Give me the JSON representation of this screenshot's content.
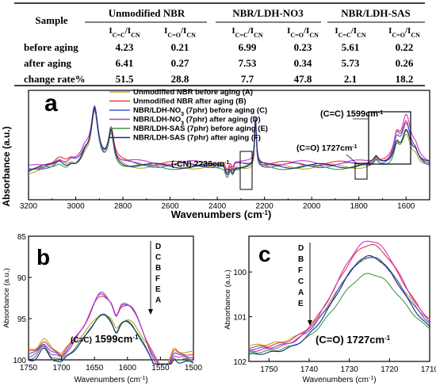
{
  "table": {
    "corner": "Sample",
    "groups": [
      "Unmodified NBR",
      "NBR/LDH-NO3",
      "NBR/LDH-SAS"
    ],
    "col_headers": [
      "IC=C/ICN",
      "IC=O/ICN",
      "IC=C/ICN",
      "IC=O/ICN",
      "IC=C/ICN",
      "IC=O/ICN"
    ],
    "rows": [
      {
        "label": "before aging",
        "values": [
          "4.23",
          "0.21",
          "6.99",
          "0.23",
          "5.61",
          "0.22"
        ]
      },
      {
        "label": "after aging",
        "values": [
          "6.41",
          "0.27",
          "7.53",
          "0.34",
          "5.73",
          "0.26"
        ]
      },
      {
        "label": "change rate%",
        "values": [
          "51.5",
          "28.8",
          "7.7",
          "47.8",
          "2.1",
          "18.2"
        ]
      }
    ]
  },
  "chart_data": [
    {
      "panel": "a",
      "type": "line",
      "xlabel": "Wavenumbers (cm-1)",
      "ylabel": "Absorbance (a.u.)",
      "xlim": [
        3200,
        1500
      ],
      "x_ticks": [
        "3200",
        "3000",
        "2800",
        "2600",
        "2400",
        "2200",
        "2000",
        "1800",
        "1600"
      ],
      "legend_position": "top-center",
      "series": [
        {
          "name": "Unmodified NBR before aging (A)",
          "color": "#b5a82a"
        },
        {
          "name": "Unmodified NBR after aging (B)",
          "color": "#e8383a"
        },
        {
          "name": "NBR/LDH-NO3 (7phr) before aging (C)",
          "color": "#4a56d8"
        },
        {
          "name": "NBR/LDH-NO3 (7phr) after aging (D)",
          "color": "#cc33cc"
        },
        {
          "name": "NBR/LDH-SAS (7phr) before aging (E)",
          "color": "#3f9a4a"
        },
        {
          "name": "NBR/LDH-SAS (7phr) after aging (F)",
          "color": "#1a2a7a"
        }
      ],
      "annotations": [
        "(C=C) 1599cm-1",
        "(C=O) 1727cm-1",
        "(-CN) 2238cm-1"
      ],
      "peaks": [
        {
          "x": 2920,
          "height": 0.68
        },
        {
          "x": 2850,
          "height": 0.41
        },
        {
          "x": 2238,
          "height": 0.6
        },
        {
          "x": 1727,
          "height": 0.08
        },
        {
          "x": 1599,
          "height": 0.55
        }
      ]
    },
    {
      "panel": "b",
      "type": "line",
      "xlabel": "Wavenumbers (cm-1)",
      "ylabel": "Absorbance (a.u.)",
      "xlim": [
        1750,
        1500
      ],
      "ylim": [
        85,
        100
      ],
      "y_reversed": true,
      "x_ticks": [
        "1750",
        "1700",
        "1650",
        "1600",
        "1550",
        "1500"
      ],
      "y_ticks": [
        "85",
        "90",
        "95",
        "100"
      ],
      "order_labels": [
        "D",
        "C",
        "B",
        "F",
        "E",
        "A"
      ],
      "annotation": "(C=C) 1599cm-1"
    },
    {
      "panel": "c",
      "type": "line",
      "xlabel": "Wavenumbers (cm-1)",
      "ylabel": "Absorbance (a.u.)",
      "xlim": [
        1755,
        1710
      ],
      "ylim": [
        99.2,
        102
      ],
      "y_reversed": true,
      "x_ticks": [
        "1750",
        "1740",
        "1730",
        "1720",
        "1710"
      ],
      "y_ticks": [
        "100",
        "101",
        "102"
      ],
      "order_labels": [
        "D",
        "B",
        "F",
        "C",
        "A",
        "E"
      ],
      "annotation": "(C=O) 1727cm-1"
    }
  ]
}
